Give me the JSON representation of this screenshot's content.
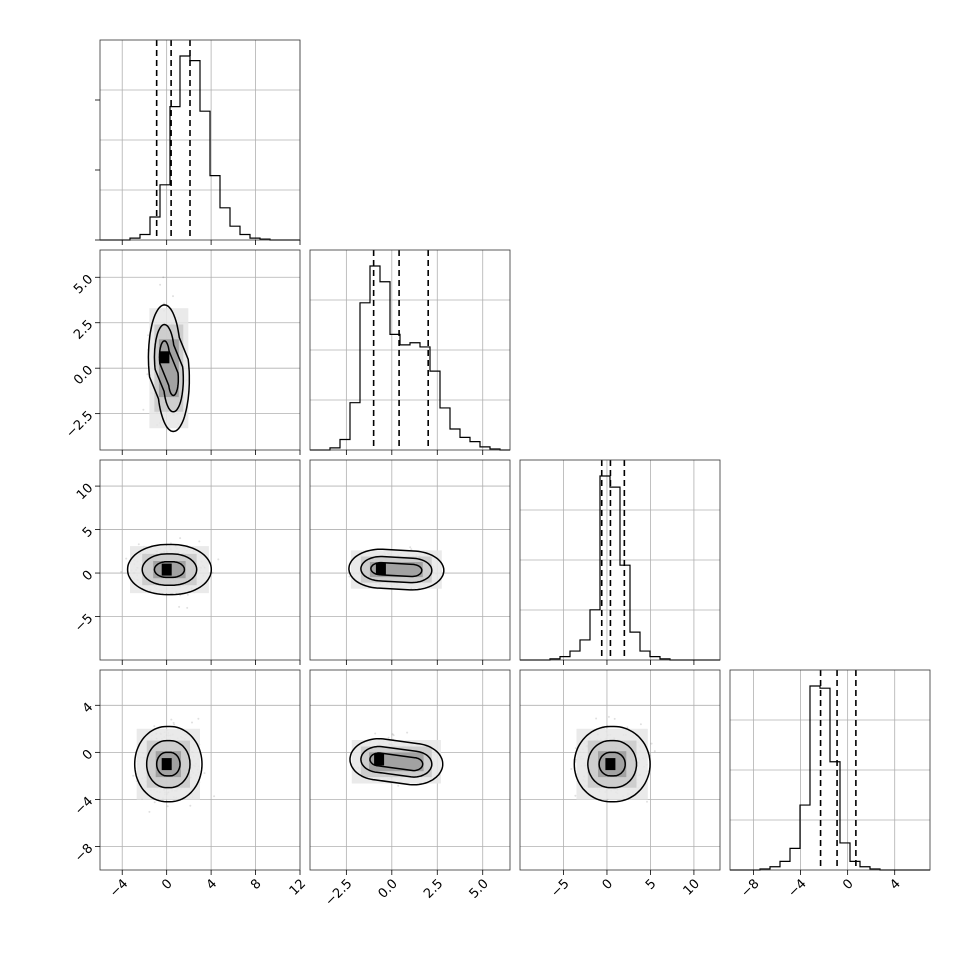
{
  "chart_data": {
    "type": "corner",
    "grid": true,
    "parameters": [
      {
        "range": [
          -6,
          12
        ],
        "ticks": [
          -4,
          0,
          4,
          8,
          12
        ],
        "tick_labels": [
          "−4",
          "0",
          "4",
          "8",
          "12"
        ],
        "quantiles": [
          -0.9,
          0.4,
          2.1
        ],
        "peak": 0.0,
        "width_left": 1.0,
        "width_right": 1.6
      },
      {
        "range": [
          -4.5,
          6.5
        ],
        "ticks": [
          -2.5,
          0.0,
          2.5,
          5.0
        ],
        "tick_labels": [
          "−2.5",
          "0.0",
          "2.5",
          "5.0"
        ],
        "quantiles": [
          -1.0,
          0.4,
          2.0
        ],
        "peak": -0.8,
        "width_left": 0.7,
        "width_right": 1.9
      },
      {
        "range": [
          -10,
          13
        ],
        "ticks": [
          -5,
          0,
          5,
          10
        ],
        "tick_labels": [
          "−5",
          "0",
          "5",
          "10"
        ],
        "quantiles": [
          -0.6,
          0.4,
          2.0
        ],
        "peak": 0.6,
        "width_left": 1.2,
        "width_right": 1.6
      },
      {
        "range": [
          -10,
          7
        ],
        "ticks": [
          -8,
          -4,
          0,
          4
        ],
        "tick_labels": [
          "−8",
          "−4",
          "0",
          "4"
        ],
        "quantiles": [
          -2.3,
          -0.9,
          0.7
        ],
        "peak": -0.9,
        "width_left": 1.3,
        "width_right": 1.3
      }
    ],
    "histograms": [
      {
        "param": 0,
        "bin_start": -6,
        "bin_width": 0.9,
        "counts": [
          0,
          0,
          0,
          2,
          6,
          25,
          60,
          145,
          200,
          195,
          140,
          70,
          35,
          15,
          6,
          2,
          1,
          0,
          0,
          0
        ]
      },
      {
        "param": 1,
        "bin_start": -4.5,
        "bin_width": 0.55,
        "counts": [
          0,
          0,
          2,
          10,
          45,
          140,
          175,
          160,
          110,
          100,
          102,
          98,
          75,
          40,
          20,
          12,
          8,
          3,
          1,
          0
        ]
      },
      {
        "param": 2,
        "bin_start": -10,
        "bin_width": 1.15,
        "counts": [
          0,
          0,
          0,
          1,
          3,
          8,
          18,
          45,
          165,
          155,
          85,
          25,
          8,
          3,
          1,
          0,
          0,
          0,
          0,
          0
        ]
      },
      {
        "param": 3,
        "bin_start": -10,
        "bin_width": 0.85,
        "counts": [
          0,
          0,
          0,
          1,
          3,
          8,
          20,
          60,
          170,
          168,
          100,
          25,
          8,
          3,
          1,
          0,
          0,
          0,
          0,
          0
        ]
      }
    ],
    "pairs": [
      {
        "x": 0,
        "y": 1,
        "centers": [
          [
            -0.2,
            0.6
          ],
          [
            0.6,
            -0.6
          ]
        ],
        "spread": [
          0.45,
          0.9
        ],
        "contour_scale": [
          1.0,
          2.0,
          3.2
        ]
      },
      {
        "x": 0,
        "y": 2,
        "centers": [
          [
            0.0,
            0.4
          ],
          [
            0.5,
            0.4
          ]
        ],
        "spread": [
          1.1,
          0.9
        ],
        "contour_scale": [
          1.0,
          2.0,
          3.2
        ]
      },
      {
        "x": 1,
        "y": 2,
        "centers": [
          [
            -0.6,
            0.5
          ],
          [
            1.1,
            0.3
          ]
        ],
        "spread": [
          0.55,
          0.7
        ],
        "contour_scale": [
          1.0,
          2.0,
          3.2
        ]
      },
      {
        "x": 0,
        "y": 3,
        "centers": [
          [
            0.0,
            -1.0
          ],
          [
            0.3,
            -1.0
          ]
        ],
        "spread": [
          0.9,
          1.0
        ],
        "contour_scale": [
          1.0,
          2.0,
          3.2
        ]
      },
      {
        "x": 1,
        "y": 3,
        "centers": [
          [
            -0.7,
            -0.6
          ],
          [
            1.2,
            -1.0
          ]
        ],
        "spread": [
          0.5,
          0.55
        ],
        "contour_scale": [
          1.0,
          2.0,
          3.2
        ]
      },
      {
        "x": 2,
        "y": 3,
        "centers": [
          [
            0.4,
            -1.0
          ],
          [
            0.8,
            -1.0
          ]
        ],
        "spread": [
          1.3,
          1.0
        ],
        "contour_scale": [
          1.0,
          2.0,
          3.2
        ]
      }
    ]
  }
}
